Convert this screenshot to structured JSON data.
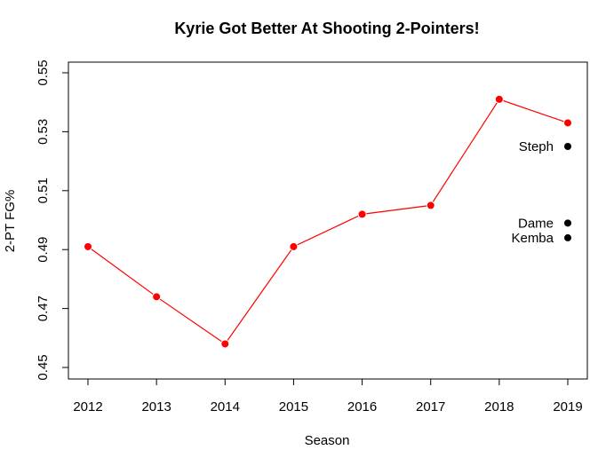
{
  "chart_data": {
    "type": "line",
    "title": "Kyrie Got Better At Shooting 2-Pointers!",
    "xlabel": "Season",
    "ylabel": "2-PT FG%",
    "x": [
      2012,
      2013,
      2014,
      2015,
      2016,
      2017,
      2018,
      2019
    ],
    "xlim": [
      2012,
      2019
    ],
    "ylim": [
      0.45,
      0.55
    ],
    "yticks": [
      0.45,
      0.47,
      0.49,
      0.51,
      0.53,
      0.55
    ],
    "grid": false,
    "series": [
      {
        "values": [
          0.491,
          0.474,
          0.458,
          0.491,
          0.502,
          0.505,
          0.541,
          0.533
        ],
        "color": "#ff0000",
        "marker_color": "#ff0000"
      }
    ],
    "annotations": [
      {
        "label": "Steph",
        "x": 2019,
        "y": 0.525,
        "color": "#000000"
      },
      {
        "label": "Dame",
        "x": 2019,
        "y": 0.499,
        "color": "#000000"
      },
      {
        "label": "Kemba",
        "x": 2019,
        "y": 0.494,
        "color": "#000000"
      }
    ]
  }
}
